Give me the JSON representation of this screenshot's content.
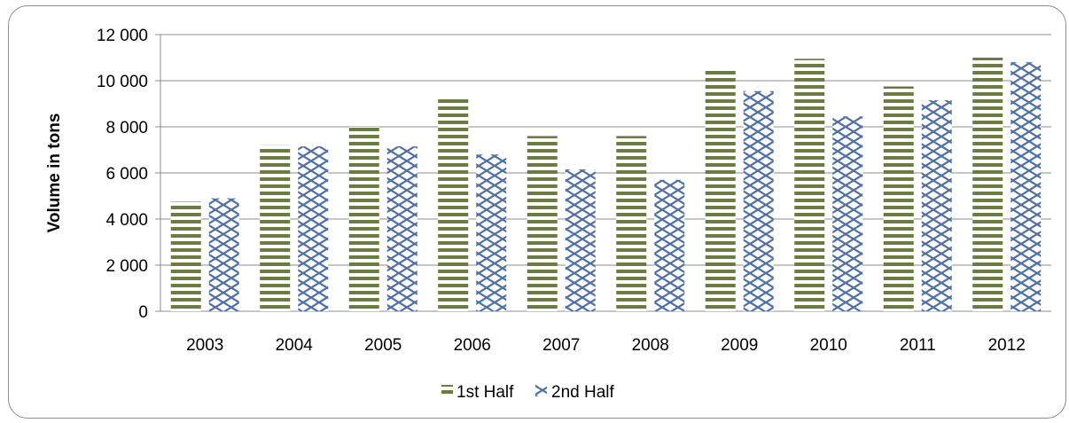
{
  "chart_data": {
    "type": "bar",
    "title": "",
    "xlabel": "",
    "ylabel": "Volume in tons",
    "ylim": [
      0,
      12000
    ],
    "yticks": [
      0,
      2000,
      4000,
      6000,
      8000,
      10000,
      12000
    ],
    "ytick_labels": [
      "0",
      "2 000",
      "4 000",
      "6 000",
      "8 000",
      "10 000",
      "12 000"
    ],
    "categories": [
      "2003",
      "2004",
      "2005",
      "2006",
      "2007",
      "2008",
      "2009",
      "2010",
      "2011",
      "2012"
    ],
    "series": [
      {
        "name": "1st Half",
        "color": "#6b7c3f",
        "pattern": "horizontal-stripes",
        "values": [
          4750,
          7200,
          8000,
          9300,
          7600,
          7600,
          10500,
          10950,
          9750,
          11000
        ]
      },
      {
        "name": "2nd Half",
        "color": "#4f6fa8",
        "pattern": "diagonal-lattice",
        "values": [
          4900,
          7150,
          7150,
          6800,
          6150,
          5700,
          9550,
          8450,
          9150,
          10800
        ]
      }
    ],
    "grid": true,
    "legend_position": "bottom"
  }
}
